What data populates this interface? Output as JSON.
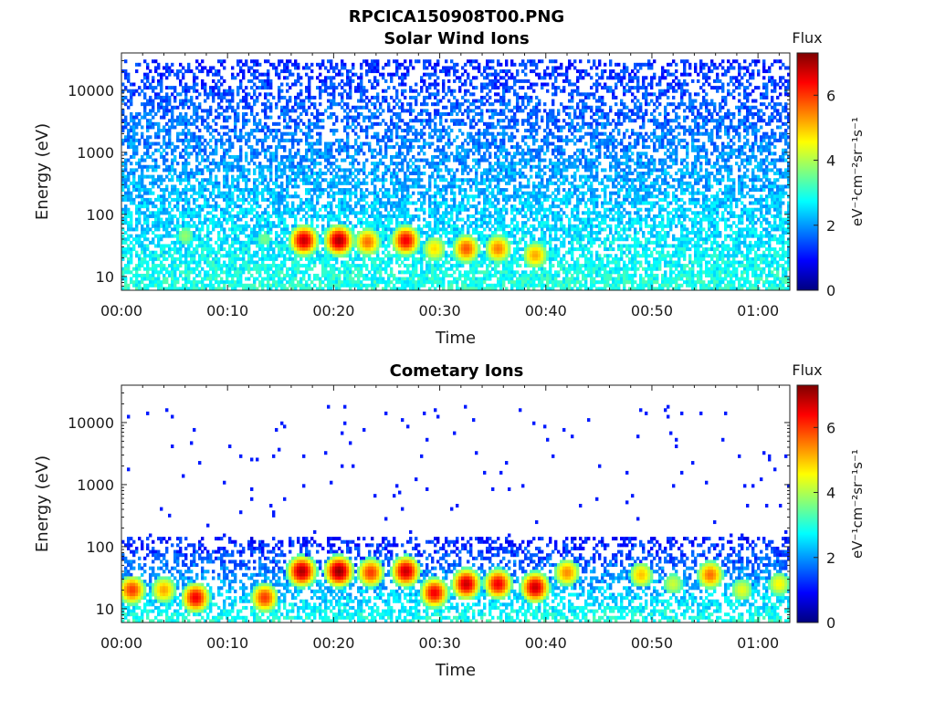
{
  "figure": {
    "title": "RPCICA150908T00.PNG"
  },
  "colormap": [
    "#00007f",
    "#0000ff",
    "#007fff",
    "#00ffff",
    "#7fff7f",
    "#ffff00",
    "#ff7f00",
    "#ff0000",
    "#7f0000"
  ],
  "chart_data": [
    {
      "type": "heatmap",
      "title": "Solar Wind Ions",
      "xlabel": "Time",
      "ylabel": "Energy (eV)",
      "x_ticks": [
        "00:00",
        "00:10",
        "00:20",
        "00:30",
        "00:40",
        "00:50",
        "01:00"
      ],
      "x_tick_minutes": [
        0,
        10,
        20,
        30,
        40,
        50,
        60
      ],
      "xlim_minutes": [
        0,
        63
      ],
      "yscale": "log",
      "y_ticks": [
        "10",
        "100",
        "1000",
        "10000"
      ],
      "y_tick_values": [
        10,
        100,
        1000,
        10000
      ],
      "ylim": [
        6,
        40000
      ],
      "colorbar": {
        "title": "Flux",
        "label": "eV⁻¹cm⁻²sr⁻¹s⁻¹",
        "ticks": [
          "0",
          "2",
          "4",
          "6"
        ],
        "tick_values": [
          0,
          2,
          4,
          6
        ],
        "range": [
          0,
          7.3
        ]
      },
      "background": {
        "energy_max_eV": 30000,
        "low_energy_level": 3.0,
        "high_energy_level": 1.2
      },
      "features": [
        {
          "t_min": 17.2,
          "energy_eV": 38,
          "flux": 6.8
        },
        {
          "t_min": 20.5,
          "energy_eV": 38,
          "flux": 7.0
        },
        {
          "t_min": 23.2,
          "energy_eV": 36,
          "flux": 5.6
        },
        {
          "t_min": 26.8,
          "energy_eV": 38,
          "flux": 6.5
        },
        {
          "t_min": 29.5,
          "energy_eV": 28,
          "flux": 4.8
        },
        {
          "t_min": 32.5,
          "energy_eV": 28,
          "flux": 5.8
        },
        {
          "t_min": 35.5,
          "energy_eV": 28,
          "flux": 5.5
        },
        {
          "t_min": 39.0,
          "energy_eV": 22,
          "flux": 5.2
        },
        {
          "t_min": 6.0,
          "energy_eV": 45,
          "flux": 3.8
        },
        {
          "t_min": 13.5,
          "energy_eV": 40,
          "flux": 3.6
        }
      ]
    },
    {
      "type": "heatmap",
      "title": "Cometary Ions",
      "xlabel": "Time",
      "ylabel": "Energy (eV)",
      "x_ticks": [
        "00:00",
        "00:10",
        "00:20",
        "00:30",
        "00:40",
        "00:50",
        "01:00"
      ],
      "x_tick_minutes": [
        0,
        10,
        20,
        30,
        40,
        50,
        60
      ],
      "xlim_minutes": [
        0,
        63
      ],
      "yscale": "log",
      "y_ticks": [
        "10",
        "100",
        "1000",
        "10000"
      ],
      "y_tick_values": [
        10,
        100,
        1000,
        10000
      ],
      "ylim": [
        6,
        40000
      ],
      "colorbar": {
        "title": "Flux",
        "label": "eV⁻¹cm⁻²sr⁻¹s⁻¹",
        "ticks": [
          "0",
          "2",
          "4",
          "6"
        ],
        "tick_values": [
          0,
          2,
          4,
          6
        ],
        "range": [
          0,
          7.3
        ]
      },
      "background": {
        "energy_max_eV": 150,
        "low_energy_level": 3.0,
        "high_energy_level": 1.0
      },
      "features": [
        {
          "t_min": 1.0,
          "energy_eV": 20,
          "flux": 6.0
        },
        {
          "t_min": 4.0,
          "energy_eV": 20,
          "flux": 5.2
        },
        {
          "t_min": 7.0,
          "energy_eV": 15,
          "flux": 6.5
        },
        {
          "t_min": 13.5,
          "energy_eV": 15,
          "flux": 6.0
        },
        {
          "t_min": 17.0,
          "energy_eV": 40,
          "flux": 7.0
        },
        {
          "t_min": 20.5,
          "energy_eV": 40,
          "flux": 7.2
        },
        {
          "t_min": 23.5,
          "energy_eV": 38,
          "flux": 6.0
        },
        {
          "t_min": 26.8,
          "energy_eV": 40,
          "flux": 6.8
        },
        {
          "t_min": 29.5,
          "energy_eV": 18,
          "flux": 6.5
        },
        {
          "t_min": 32.5,
          "energy_eV": 25,
          "flux": 6.8
        },
        {
          "t_min": 35.5,
          "energy_eV": 25,
          "flux": 6.5
        },
        {
          "t_min": 39.0,
          "energy_eV": 22,
          "flux": 6.8
        },
        {
          "t_min": 42.0,
          "energy_eV": 38,
          "flux": 5.4
        },
        {
          "t_min": 49.0,
          "energy_eV": 35,
          "flux": 5.0
        },
        {
          "t_min": 52.0,
          "energy_eV": 25,
          "flux": 4.2
        },
        {
          "t_min": 55.5,
          "energy_eV": 35,
          "flux": 5.6
        },
        {
          "t_min": 58.5,
          "energy_eV": 20,
          "flux": 4.4
        },
        {
          "t_min": 62.0,
          "energy_eV": 25,
          "flux": 4.6
        }
      ]
    }
  ]
}
